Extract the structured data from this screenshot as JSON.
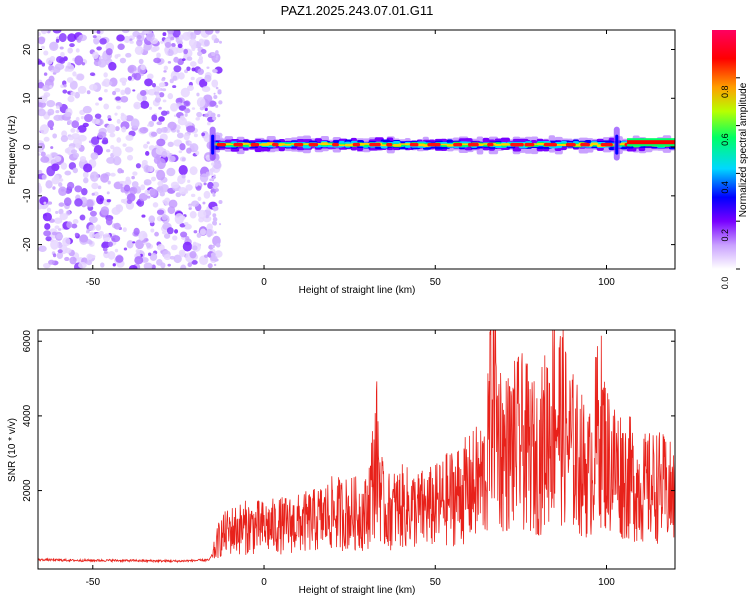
{
  "title": "PAZ1.2025.243.07.01.G11",
  "colors": {
    "snr_line": "#e8211a",
    "axis": "#000000",
    "spec_dots": "#8a2be2",
    "ridge": "#ff0000"
  },
  "chart_data": [
    {
      "type": "heatmap",
      "name": "spectrogram",
      "title": "PAZ1.2025.243.07.01.G11",
      "xlabel": "Height of straight line (km)",
      "ylabel": "Frequency (Hz)",
      "xlim": [
        -66,
        120
      ],
      "ylim": [
        -25,
        24
      ],
      "xticks": [
        -50,
        0,
        50,
        100
      ],
      "yticks": [
        -20,
        -10,
        0,
        10,
        20
      ],
      "colorbar": {
        "label": "Normalized spectral amplitude",
        "range": [
          0,
          1
        ],
        "ticks": [
          "0.0",
          "0.2",
          "0.4",
          "0.6",
          "0.8"
        ],
        "tick_values": [
          0,
          0.2,
          0.4,
          0.6,
          0.8
        ],
        "colormap": [
          "#ffffff",
          "#b070ff",
          "#7800ff",
          "#0000ff",
          "#00d8ff",
          "#00ff66",
          "#b8ff00",
          "#ffa000",
          "#ff0000",
          "#ff0060"
        ]
      },
      "noise_region_km": [
        -66,
        -15
      ],
      "signal_start_km": -15,
      "ridge_frequency_hz": 0.5,
      "ridge_end_frequency_hz": 1.0
    },
    {
      "type": "line",
      "name": "snr",
      "xlabel": "Height of straight line (km)",
      "ylabel": "SNR (10 * v/v)",
      "xlim": [
        -66,
        120
      ],
      "ylim": [
        -100,
        6300
      ],
      "xticks": [
        -50,
        0,
        50,
        100
      ],
      "yticks": [
        2000,
        4000,
        6000
      ],
      "series": [
        {
          "name": "SNR",
          "x": [
            -66,
            -55,
            -45,
            -35,
            -25,
            -16,
            -15,
            -13,
            -10,
            -5,
            0,
            5,
            10,
            15,
            20,
            25,
            30,
            33,
            35,
            40,
            45,
            50,
            55,
            60,
            65,
            67,
            68,
            70,
            75,
            80,
            85,
            90,
            95,
            98,
            100,
            103,
            105,
            107,
            110,
            115,
            120
          ],
          "y": [
            150,
            130,
            130,
            120,
            110,
            140,
            300,
            800,
            1000,
            1100,
            1100,
            1150,
            1200,
            1300,
            1500,
            1500,
            1500,
            3200,
            1500,
            1700,
            1600,
            1700,
            2000,
            2200,
            2600,
            6100,
            4000,
            3200,
            3600,
            3000,
            4600,
            3300,
            2600,
            4200,
            3100,
            2800,
            2600,
            2500,
            2200,
            2300,
            2000
          ]
        }
      ]
    }
  ]
}
